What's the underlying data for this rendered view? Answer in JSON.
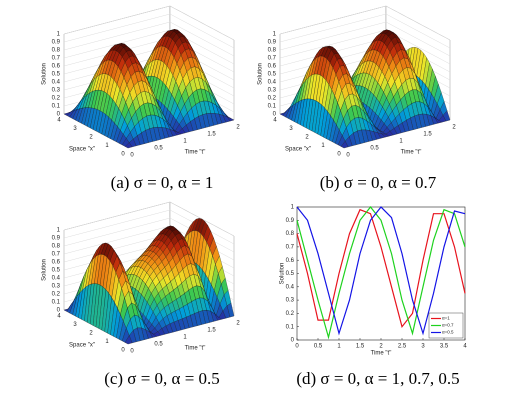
{
  "panels": [
    {
      "caption": "(a) σ = 0,  α = 1"
    },
    {
      "caption": "(b) σ = 0,  α = 0.7"
    },
    {
      "caption": "(c) σ = 0,  α = 0.5"
    }
  ],
  "surface_axes": {
    "zlabel": "Solution",
    "xlabel": "Space \"x\"",
    "ylabel": "Time \"t\"",
    "zticks": [
      0,
      0.1,
      0.2,
      0.3,
      0.4,
      0.5,
      0.6,
      0.7,
      0.8,
      0.9,
      1
    ],
    "xticks": [
      0,
      1,
      2,
      3,
      4
    ],
    "yticks": [
      0,
      0.5,
      1,
      1.5,
      2
    ]
  },
  "chart_data": {
    "type": "line",
    "caption": "(d) σ = 0,  α = 1, 0.7, 0.5",
    "xlabel": "Time \"t\"",
    "ylabel": "Solution",
    "x": [
      0,
      0.25,
      0.5,
      0.75,
      1,
      1.25,
      1.5,
      1.75,
      2,
      2.25,
      2.5,
      2.75,
      3,
      3.25,
      3.5,
      3.75,
      4
    ],
    "series": [
      {
        "name": "α=1",
        "color": "#e8141e",
        "values": [
          0.8,
          0.5,
          0.15,
          0.15,
          0.5,
          0.8,
          0.98,
          0.95,
          0.7,
          0.4,
          0.1,
          0.2,
          0.6,
          0.95,
          0.95,
          0.7,
          0.35
        ]
      },
      {
        "name": "α=0.7",
        "color": "#1ed21e",
        "values": [
          0.9,
          0.6,
          0.3,
          0.02,
          0.35,
          0.65,
          0.9,
          1.0,
          0.9,
          0.65,
          0.3,
          0.05,
          0.4,
          0.75,
          0.98,
          0.95,
          0.7
        ]
      },
      {
        "name": "α=0.5",
        "color": "#1414e6",
        "values": [
          1.0,
          0.9,
          0.65,
          0.35,
          0.05,
          0.3,
          0.65,
          0.9,
          1.0,
          0.92,
          0.65,
          0.3,
          0.05,
          0.35,
          0.7,
          0.97,
          0.95
        ]
      }
    ],
    "xlim": [
      0,
      4
    ],
    "ylim": [
      0,
      1
    ],
    "xticks": [
      0,
      0.5,
      1,
      1.5,
      2,
      2.5,
      3,
      3.5,
      4
    ],
    "yticks": [
      0,
      0.1,
      0.2,
      0.3,
      0.4,
      0.5,
      0.6,
      0.7,
      0.8,
      0.9,
      1
    ],
    "legend": "lower right"
  }
}
